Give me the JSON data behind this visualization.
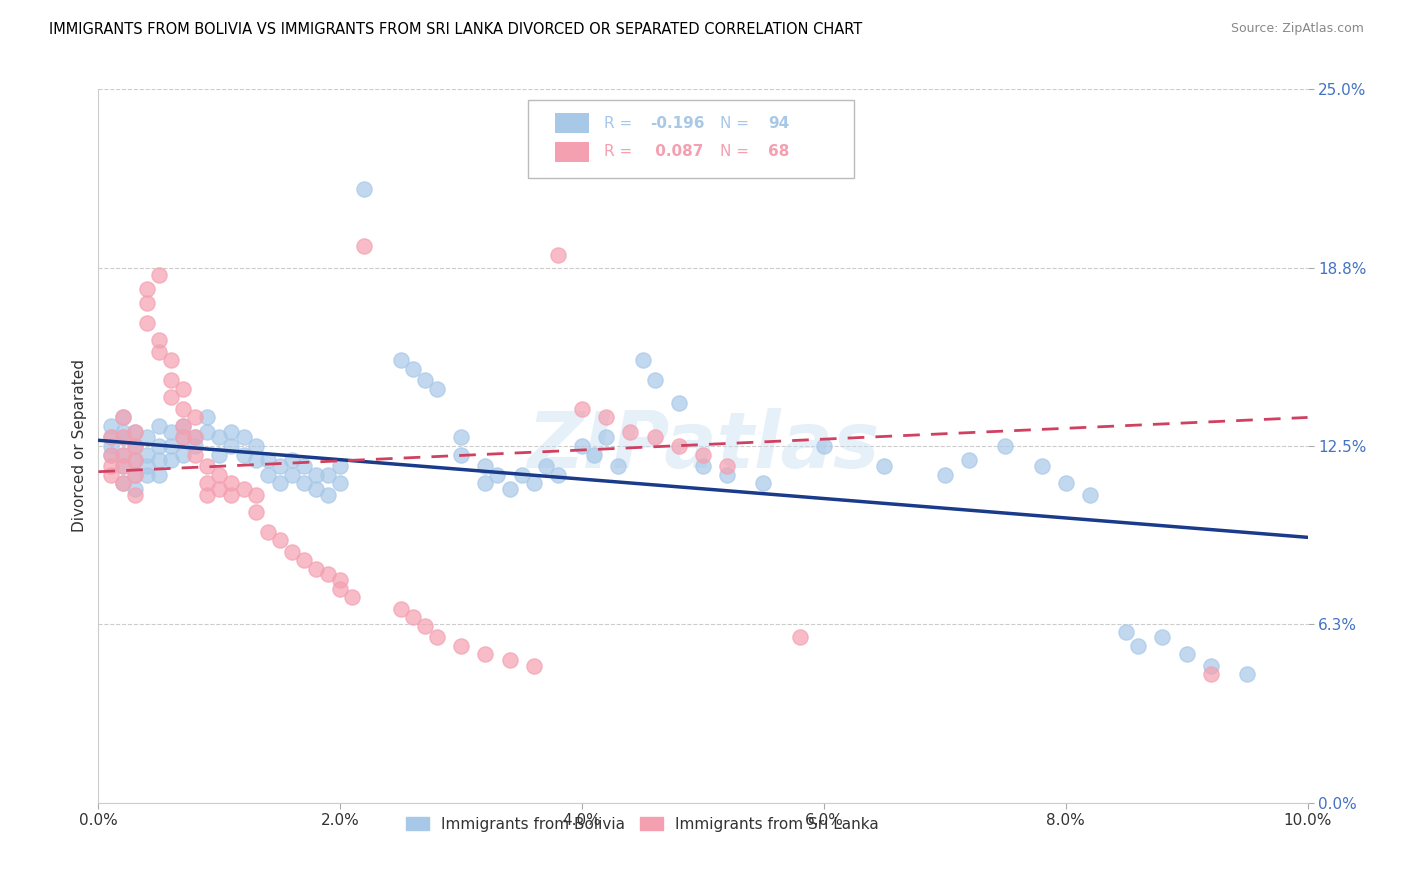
{
  "title": "IMMIGRANTS FROM BOLIVIA VS IMMIGRANTS FROM SRI LANKA DIVORCED OR SEPARATED CORRELATION CHART",
  "source": "Source: ZipAtlas.com",
  "ylabel_label": "Divorced or Separated",
  "xlim": [
    0.0,
    0.1
  ],
  "ylim": [
    0.0,
    0.25
  ],
  "bolivia_color": "#a8c8e8",
  "srilanka_color": "#f4a0b0",
  "bolivia_line_color": "#1a3a8a",
  "srilanka_line_color": "#d04060",
  "srilanka_line_dash": [
    6,
    4
  ],
  "watermark": "ZIPatlas",
  "bolivia_R": -0.196,
  "bolivia_N": 94,
  "srilanka_R": 0.087,
  "srilanka_N": 68,
  "bolivia_points": [
    [
      0.001,
      0.132
    ],
    [
      0.001,
      0.128
    ],
    [
      0.001,
      0.125
    ],
    [
      0.001,
      0.122
    ],
    [
      0.002,
      0.135
    ],
    [
      0.002,
      0.13
    ],
    [
      0.002,
      0.128
    ],
    [
      0.002,
      0.122
    ],
    [
      0.002,
      0.118
    ],
    [
      0.002,
      0.112
    ],
    [
      0.003,
      0.13
    ],
    [
      0.003,
      0.125
    ],
    [
      0.003,
      0.12
    ],
    [
      0.003,
      0.115
    ],
    [
      0.003,
      0.11
    ],
    [
      0.004,
      0.128
    ],
    [
      0.004,
      0.122
    ],
    [
      0.004,
      0.118
    ],
    [
      0.004,
      0.115
    ],
    [
      0.005,
      0.132
    ],
    [
      0.005,
      0.125
    ],
    [
      0.005,
      0.12
    ],
    [
      0.005,
      0.115
    ],
    [
      0.006,
      0.13
    ],
    [
      0.006,
      0.125
    ],
    [
      0.006,
      0.12
    ],
    [
      0.007,
      0.132
    ],
    [
      0.007,
      0.128
    ],
    [
      0.007,
      0.122
    ],
    [
      0.008,
      0.128
    ],
    [
      0.008,
      0.125
    ],
    [
      0.009,
      0.135
    ],
    [
      0.009,
      0.13
    ],
    [
      0.01,
      0.128
    ],
    [
      0.01,
      0.122
    ],
    [
      0.011,
      0.13
    ],
    [
      0.011,
      0.125
    ],
    [
      0.012,
      0.128
    ],
    [
      0.012,
      0.122
    ],
    [
      0.013,
      0.125
    ],
    [
      0.013,
      0.12
    ],
    [
      0.014,
      0.12
    ],
    [
      0.014,
      0.115
    ],
    [
      0.015,
      0.118
    ],
    [
      0.015,
      0.112
    ],
    [
      0.016,
      0.12
    ],
    [
      0.016,
      0.115
    ],
    [
      0.017,
      0.118
    ],
    [
      0.017,
      0.112
    ],
    [
      0.018,
      0.115
    ],
    [
      0.018,
      0.11
    ],
    [
      0.019,
      0.115
    ],
    [
      0.019,
      0.108
    ],
    [
      0.02,
      0.118
    ],
    [
      0.02,
      0.112
    ],
    [
      0.022,
      0.215
    ],
    [
      0.025,
      0.155
    ],
    [
      0.026,
      0.152
    ],
    [
      0.027,
      0.148
    ],
    [
      0.028,
      0.145
    ],
    [
      0.03,
      0.128
    ],
    [
      0.03,
      0.122
    ],
    [
      0.032,
      0.118
    ],
    [
      0.032,
      0.112
    ],
    [
      0.033,
      0.115
    ],
    [
      0.034,
      0.11
    ],
    [
      0.035,
      0.115
    ],
    [
      0.036,
      0.112
    ],
    [
      0.037,
      0.118
    ],
    [
      0.038,
      0.115
    ],
    [
      0.04,
      0.125
    ],
    [
      0.041,
      0.122
    ],
    [
      0.042,
      0.128
    ],
    [
      0.043,
      0.118
    ],
    [
      0.045,
      0.155
    ],
    [
      0.046,
      0.148
    ],
    [
      0.048,
      0.14
    ],
    [
      0.05,
      0.118
    ],
    [
      0.052,
      0.115
    ],
    [
      0.055,
      0.112
    ],
    [
      0.06,
      0.125
    ],
    [
      0.065,
      0.118
    ],
    [
      0.07,
      0.115
    ],
    [
      0.072,
      0.12
    ],
    [
      0.075,
      0.125
    ],
    [
      0.078,
      0.118
    ],
    [
      0.08,
      0.112
    ],
    [
      0.082,
      0.108
    ],
    [
      0.085,
      0.06
    ],
    [
      0.086,
      0.055
    ],
    [
      0.088,
      0.058
    ],
    [
      0.09,
      0.052
    ],
    [
      0.092,
      0.048
    ],
    [
      0.095,
      0.045
    ]
  ],
  "srilanka_points": [
    [
      0.001,
      0.128
    ],
    [
      0.001,
      0.122
    ],
    [
      0.001,
      0.118
    ],
    [
      0.001,
      0.115
    ],
    [
      0.002,
      0.135
    ],
    [
      0.002,
      0.128
    ],
    [
      0.002,
      0.122
    ],
    [
      0.002,
      0.118
    ],
    [
      0.002,
      0.112
    ],
    [
      0.003,
      0.13
    ],
    [
      0.003,
      0.125
    ],
    [
      0.003,
      0.12
    ],
    [
      0.003,
      0.115
    ],
    [
      0.003,
      0.108
    ],
    [
      0.004,
      0.18
    ],
    [
      0.004,
      0.175
    ],
    [
      0.004,
      0.168
    ],
    [
      0.005,
      0.185
    ],
    [
      0.005,
      0.162
    ],
    [
      0.005,
      0.158
    ],
    [
      0.006,
      0.155
    ],
    [
      0.006,
      0.148
    ],
    [
      0.006,
      0.142
    ],
    [
      0.007,
      0.145
    ],
    [
      0.007,
      0.138
    ],
    [
      0.007,
      0.132
    ],
    [
      0.007,
      0.128
    ],
    [
      0.008,
      0.135
    ],
    [
      0.008,
      0.128
    ],
    [
      0.008,
      0.122
    ],
    [
      0.009,
      0.118
    ],
    [
      0.009,
      0.112
    ],
    [
      0.009,
      0.108
    ],
    [
      0.01,
      0.115
    ],
    [
      0.01,
      0.11
    ],
    [
      0.011,
      0.112
    ],
    [
      0.011,
      0.108
    ],
    [
      0.012,
      0.11
    ],
    [
      0.013,
      0.108
    ],
    [
      0.013,
      0.102
    ],
    [
      0.014,
      0.095
    ],
    [
      0.015,
      0.092
    ],
    [
      0.016,
      0.088
    ],
    [
      0.017,
      0.085
    ],
    [
      0.018,
      0.082
    ],
    [
      0.019,
      0.08
    ],
    [
      0.02,
      0.078
    ],
    [
      0.02,
      0.075
    ],
    [
      0.021,
      0.072
    ],
    [
      0.022,
      0.195
    ],
    [
      0.025,
      0.068
    ],
    [
      0.026,
      0.065
    ],
    [
      0.027,
      0.062
    ],
    [
      0.028,
      0.058
    ],
    [
      0.03,
      0.055
    ],
    [
      0.032,
      0.052
    ],
    [
      0.034,
      0.05
    ],
    [
      0.036,
      0.048
    ],
    [
      0.038,
      0.192
    ],
    [
      0.04,
      0.138
    ],
    [
      0.042,
      0.135
    ],
    [
      0.044,
      0.13
    ],
    [
      0.046,
      0.128
    ],
    [
      0.048,
      0.125
    ],
    [
      0.05,
      0.122
    ],
    [
      0.052,
      0.118
    ],
    [
      0.058,
      0.058
    ],
    [
      0.092,
      0.045
    ]
  ]
}
